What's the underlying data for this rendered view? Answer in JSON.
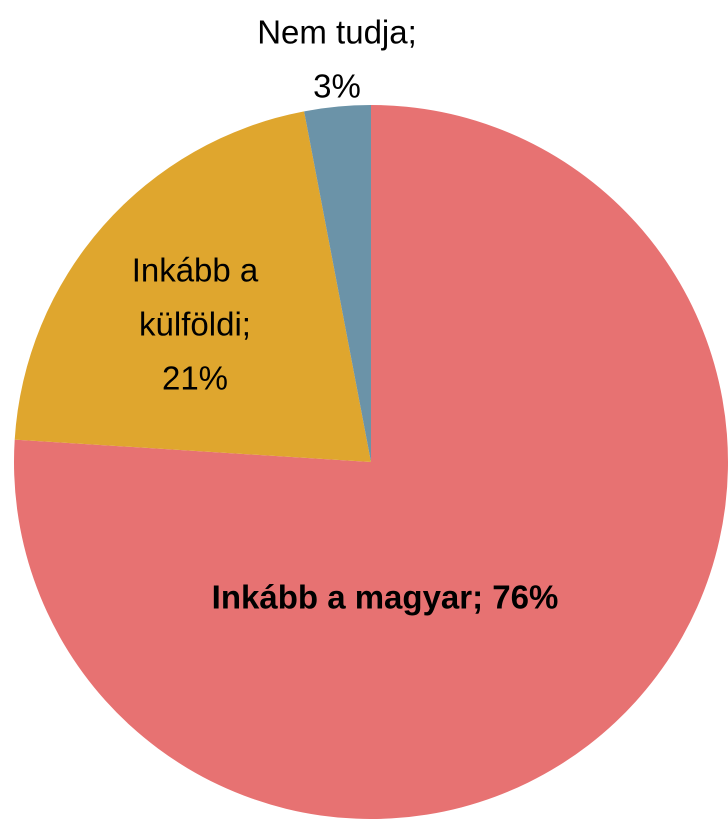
{
  "chart_data": {
    "type": "pie",
    "values": [
      76,
      21,
      3
    ],
    "value_labels": [
      [
        "Inkább a magyar; 76%"
      ],
      [
        "Inkább a",
        "külföldi;",
        "21%"
      ],
      [
        "Nem tudja;",
        "3%"
      ]
    ],
    "colors": [
      "#e77272",
      "#dfa62e",
      "#6b93a8"
    ],
    "start_angle": 90,
    "direction": "clockwise"
  }
}
